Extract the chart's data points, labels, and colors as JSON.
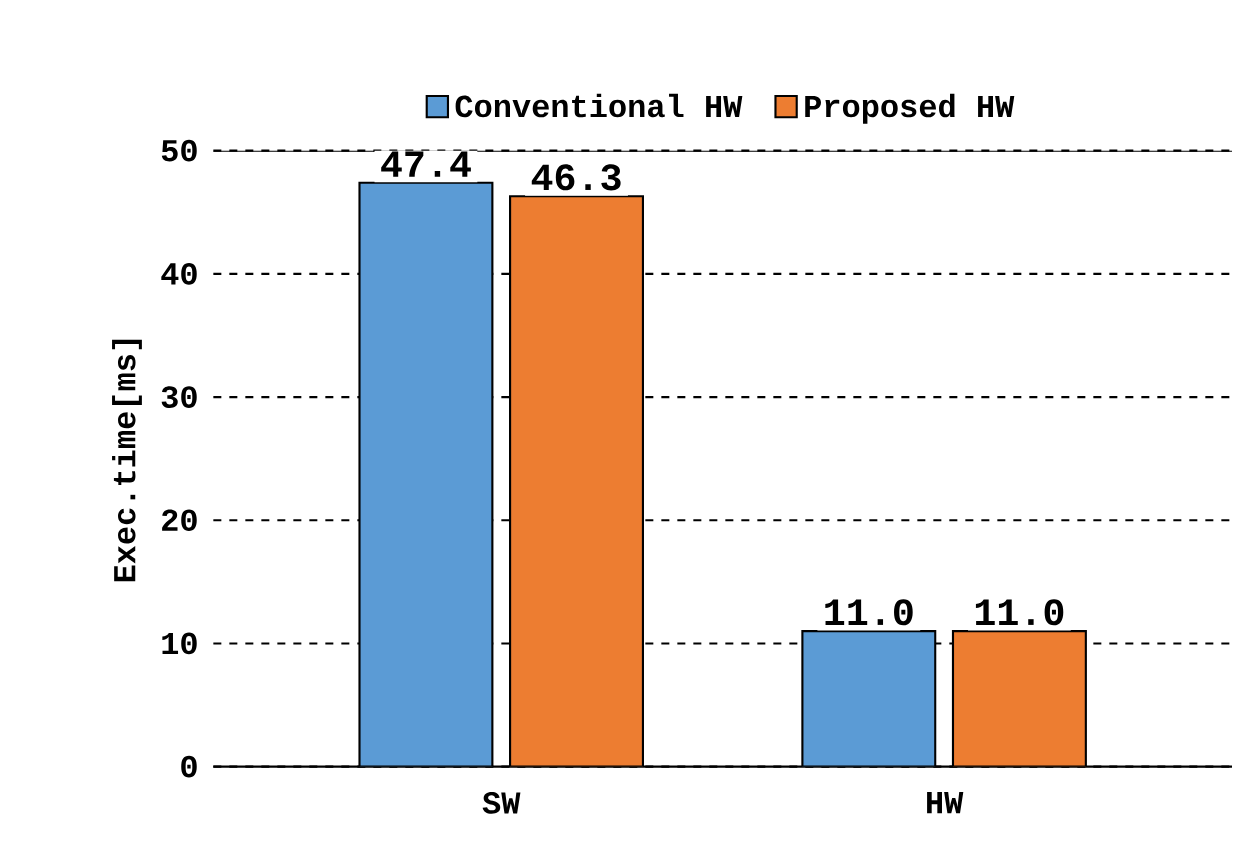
{
  "chart_data": {
    "type": "bar",
    "ylabel": "Exec.time[ms]",
    "categories": [
      "SW",
      "HW"
    ],
    "series": [
      {
        "name": "Conventional HW",
        "color": "#5b9bd5",
        "values": [
          47.4,
          11.0
        ],
        "value_labels": [
          "47.4",
          "11.0"
        ]
      },
      {
        "name": "Proposed HW",
        "color": "#ed7d31",
        "values": [
          46.3,
          11.0
        ],
        "value_labels": [
          "46.3",
          "11.0"
        ]
      }
    ],
    "ylim": [
      0,
      50
    ],
    "yticks": [
      0,
      10,
      20,
      30,
      40,
      50
    ],
    "grid": "y",
    "legend": "top"
  }
}
